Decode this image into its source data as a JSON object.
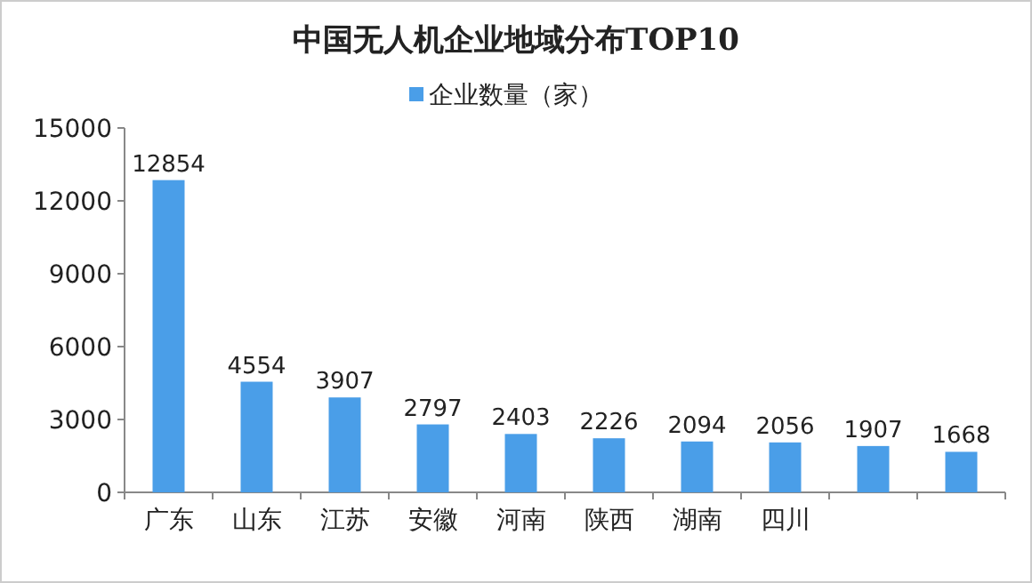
{
  "chart_data": {
    "type": "bar",
    "title": "中国无人机企业地域分布TOP10",
    "categories": [
      "广东",
      "山东",
      "江苏",
      "安徽",
      "河南",
      "陕西",
      "湖南",
      "四川",
      null,
      null
    ],
    "series": [
      {
        "name": "企业数量（家）",
        "color": "#4a9ee8",
        "values": [
          12854,
          4554,
          3907,
          2797,
          2403,
          2226,
          2094,
          2056,
          1907,
          1668
        ]
      }
    ],
    "ylim": [
      0,
      15000
    ],
    "yticks": [
      0,
      3000,
      6000,
      9000,
      12000,
      15000
    ],
    "data_labels": true,
    "legend": "top",
    "grid": false
  }
}
